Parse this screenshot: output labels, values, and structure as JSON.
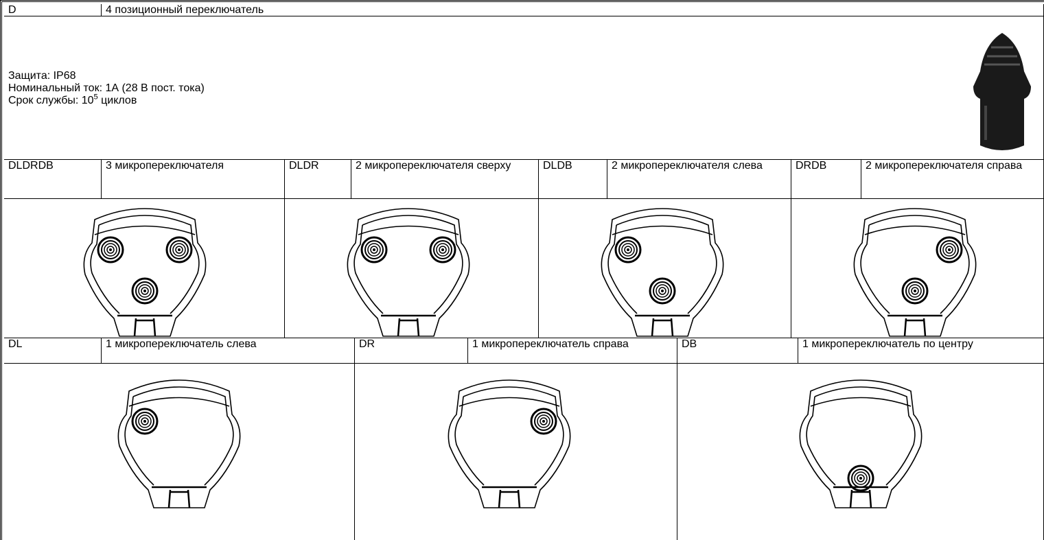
{
  "header": {
    "code": "D",
    "title": "4 позиционный переключатель"
  },
  "specs": {
    "protection": "Защита: IP68",
    "current": "Номинальный ток: 1А (28 В пост. тока)",
    "life": {
      "text": "Срок службы: 10",
      "exponent": "5",
      "unit": "циклов"
    }
  },
  "variants_row1": [
    {
      "code": "DLDRDB",
      "description": "3 микропереключателя"
    },
    {
      "code": "DLDR",
      "description": "2 микропереключателя сверху"
    },
    {
      "code": "DLDB",
      "description": "2 микропереключателя слева"
    },
    {
      "code": "DRDB",
      "description": "2 микропереключателя справа"
    }
  ],
  "variants_row2": [
    {
      "code": "DL",
      "description": "1 микропереключатель слева"
    },
    {
      "code": "DR",
      "description": "1 микропереключатель справа"
    },
    {
      "code": "DB",
      "description": "1 микропереключатель по центру"
    }
  ]
}
